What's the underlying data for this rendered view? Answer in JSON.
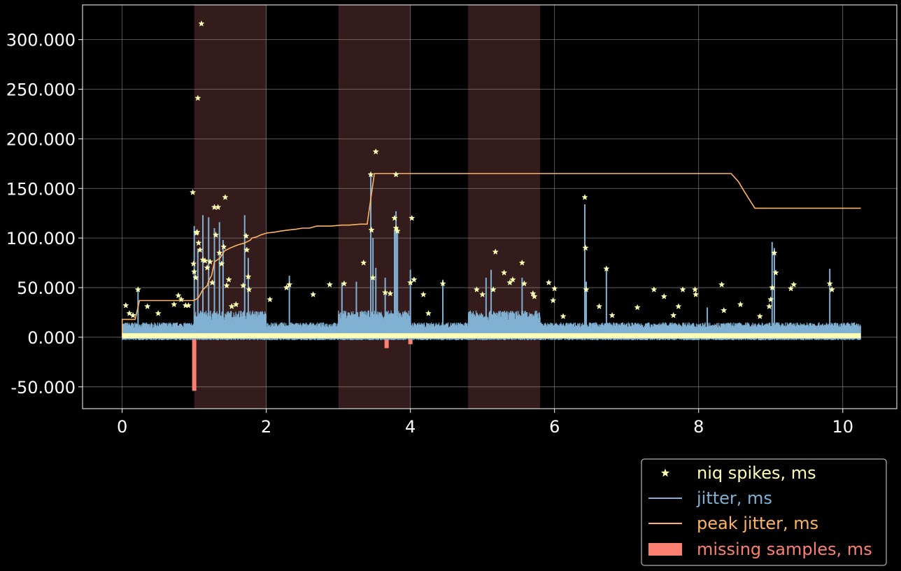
{
  "chart_data": {
    "type": "line",
    "xlim": [
      -0.55,
      10.75
    ],
    "ylim": [
      -72,
      335
    ],
    "x_ticks": [
      0,
      2,
      4,
      6,
      8,
      10
    ],
    "y_ticks": [
      -50,
      0,
      50,
      100,
      150,
      200,
      250,
      300
    ],
    "x_tick_labels": [
      "0",
      "2",
      "4",
      "6",
      "8",
      "10"
    ],
    "y_tick_labels": [
      "-50.000",
      "0.000",
      "50.000",
      "100.000",
      "150.000",
      "200.000",
      "250.000",
      "300.000"
    ],
    "grid": true,
    "legend_position": "bottom-right outside",
    "background": "#000000",
    "shaded_regions": [
      {
        "x0": 1.0,
        "x1": 2.0
      },
      {
        "x0": 3.0,
        "x1": 4.0
      },
      {
        "x0": 4.8,
        "x1": 5.8
      }
    ],
    "series": [
      {
        "name": "niq spikes, ms",
        "type": "scatter",
        "marker": "star",
        "color": "#ffffb3",
        "points": [
          [
            0.05,
            32
          ],
          [
            0.1,
            24
          ],
          [
            0.15,
            22
          ],
          [
            0.22,
            48
          ],
          [
            0.35,
            31
          ],
          [
            0.5,
            24
          ],
          [
            0.72,
            33
          ],
          [
            0.78,
            42
          ],
          [
            0.82,
            38
          ],
          [
            0.88,
            32
          ],
          [
            0.92,
            32
          ],
          [
            0.98,
            146
          ],
          [
            0.99,
            74
          ],
          [
            1.0,
            66
          ],
          [
            1.02,
            60
          ],
          [
            1.03,
            105
          ],
          [
            1.04,
            106
          ],
          [
            1.05,
            241
          ],
          [
            1.06,
            95
          ],
          [
            1.08,
            88
          ],
          [
            1.1,
            316
          ],
          [
            1.12,
            78
          ],
          [
            1.15,
            77
          ],
          [
            1.18,
            70
          ],
          [
            1.22,
            76
          ],
          [
            1.25,
            55
          ],
          [
            1.28,
            131
          ],
          [
            1.3,
            103
          ],
          [
            1.33,
            131
          ],
          [
            1.35,
            85
          ],
          [
            1.38,
            74
          ],
          [
            1.41,
            91
          ],
          [
            1.43,
            141
          ],
          [
            1.45,
            52
          ],
          [
            1.48,
            58
          ],
          [
            1.52,
            31
          ],
          [
            1.58,
            33
          ],
          [
            1.68,
            52
          ],
          [
            1.72,
            102
          ],
          [
            1.73,
            88
          ],
          [
            1.75,
            61
          ],
          [
            1.76,
            48
          ],
          [
            2.05,
            38
          ],
          [
            2.28,
            50
          ],
          [
            2.32,
            53
          ],
          [
            2.65,
            43
          ],
          [
            2.88,
            53
          ],
          [
            3.08,
            54
          ],
          [
            3.35,
            75
          ],
          [
            3.45,
            164
          ],
          [
            3.46,
            108
          ],
          [
            3.48,
            60
          ],
          [
            3.52,
            187
          ],
          [
            3.65,
            45
          ],
          [
            3.72,
            44
          ],
          [
            3.78,
            120
          ],
          [
            3.8,
            164
          ],
          [
            3.8,
            110
          ],
          [
            3.82,
            107
          ],
          [
            4.0,
            55
          ],
          [
            4.02,
            120
          ],
          [
            4.05,
            58
          ],
          [
            4.18,
            43
          ],
          [
            4.25,
            24
          ],
          [
            4.45,
            54
          ],
          [
            4.92,
            48
          ],
          [
            5.0,
            43
          ],
          [
            5.15,
            48
          ],
          [
            5.18,
            86
          ],
          [
            5.3,
            65
          ],
          [
            5.38,
            55
          ],
          [
            5.42,
            58
          ],
          [
            5.55,
            75
          ],
          [
            5.58,
            54
          ],
          [
            5.7,
            44
          ],
          [
            5.72,
            41
          ],
          [
            5.92,
            55
          ],
          [
            5.98,
            37
          ],
          [
            6.0,
            49
          ],
          [
            6.12,
            21
          ],
          [
            6.42,
            141
          ],
          [
            6.43,
            90
          ],
          [
            6.44,
            48
          ],
          [
            6.62,
            31
          ],
          [
            6.72,
            69
          ],
          [
            6.8,
            22
          ],
          [
            7.15,
            30
          ],
          [
            7.38,
            48
          ],
          [
            7.52,
            41
          ],
          [
            7.65,
            22
          ],
          [
            7.72,
            31
          ],
          [
            7.78,
            48
          ],
          [
            7.95,
            48
          ],
          [
            7.96,
            43
          ],
          [
            8.32,
            53
          ],
          [
            8.35,
            27
          ],
          [
            8.58,
            33
          ],
          [
            8.85,
            21
          ],
          [
            8.98,
            31
          ],
          [
            9.0,
            38
          ],
          [
            9.02,
            50
          ],
          [
            9.05,
            85
          ],
          [
            9.07,
            65
          ],
          [
            9.28,
            49
          ],
          [
            9.32,
            53
          ],
          [
            9.82,
            54
          ],
          [
            9.85,
            48
          ]
        ]
      },
      {
        "name": "jitter, ms",
        "type": "line",
        "color": "#80b1d3",
        "spikes": [
          [
            0.22,
            48
          ],
          [
            1.0,
            112
          ],
          [
            1.05,
            88
          ],
          [
            1.12,
            123
          ],
          [
            1.2,
            121
          ],
          [
            1.28,
            110
          ],
          [
            1.35,
            116
          ],
          [
            1.4,
            98
          ],
          [
            1.7,
            123
          ],
          [
            1.75,
            80
          ],
          [
            2.32,
            62
          ],
          [
            3.05,
            55
          ],
          [
            3.25,
            56
          ],
          [
            3.45,
            165
          ],
          [
            3.48,
            100
          ],
          [
            3.52,
            70
          ],
          [
            3.65,
            60
          ],
          [
            3.78,
            108
          ],
          [
            3.8,
            127
          ],
          [
            3.82,
            110
          ],
          [
            4.0,
            68
          ],
          [
            4.45,
            58
          ],
          [
            5.05,
            60
          ],
          [
            5.12,
            68
          ],
          [
            5.55,
            60
          ],
          [
            6.42,
            134
          ],
          [
            6.44,
            56
          ],
          [
            6.72,
            70
          ],
          [
            8.12,
            30
          ],
          [
            9.02,
            96
          ],
          [
            9.05,
            90
          ],
          [
            9.82,
            69
          ]
        ]
      },
      {
        "name": "peak jitter, ms",
        "type": "line",
        "color": "#fdb462",
        "points": [
          [
            0.0,
            0
          ],
          [
            0.0,
            18
          ],
          [
            0.18,
            18
          ],
          [
            0.24,
            37
          ],
          [
            0.98,
            37
          ],
          [
            1.02,
            38
          ],
          [
            1.06,
            40
          ],
          [
            1.12,
            48
          ],
          [
            1.18,
            52
          ],
          [
            1.2,
            57
          ],
          [
            1.24,
            62
          ],
          [
            1.28,
            76
          ],
          [
            1.36,
            80
          ],
          [
            1.42,
            87
          ],
          [
            1.5,
            90
          ],
          [
            1.6,
            93
          ],
          [
            1.7,
            95
          ],
          [
            1.78,
            98
          ],
          [
            1.8,
            100
          ],
          [
            1.86,
            101
          ],
          [
            1.92,
            103
          ],
          [
            1.96,
            104
          ],
          [
            2.0,
            105
          ],
          [
            2.12,
            106
          ],
          [
            2.2,
            107
          ],
          [
            2.3,
            108
          ],
          [
            2.42,
            109
          ],
          [
            2.5,
            110
          ],
          [
            2.6,
            110
          ],
          [
            2.7,
            112
          ],
          [
            2.8,
            112
          ],
          [
            2.9,
            112
          ],
          [
            3.05,
            113
          ],
          [
            3.15,
            113
          ],
          [
            3.3,
            114
          ],
          [
            3.4,
            114
          ],
          [
            3.5,
            165
          ],
          [
            8.45,
            165
          ],
          [
            8.55,
            157
          ],
          [
            8.65,
            145
          ],
          [
            8.78,
            130
          ],
          [
            10.25,
            130
          ]
        ]
      },
      {
        "name": "missing samples, ms",
        "type": "bar",
        "color": "#fb8072",
        "bars": [
          [
            1.0,
            -54
          ],
          [
            3.67,
            -11
          ],
          [
            4.0,
            -7
          ]
        ]
      }
    ]
  }
}
